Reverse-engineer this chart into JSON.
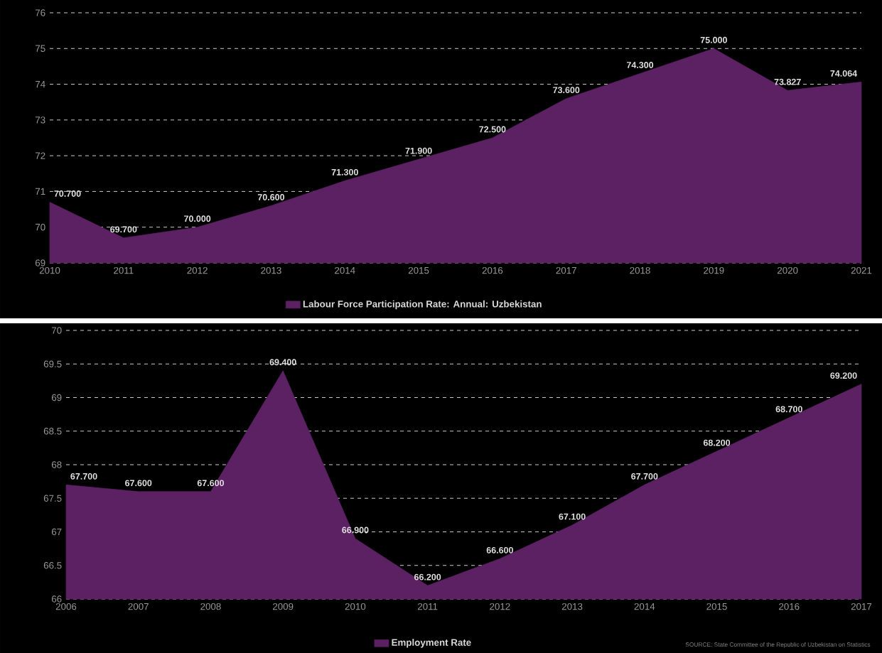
{
  "chart_data": [
    {
      "type": "area",
      "categories": [
        "2010",
        "2011",
        "2012",
        "2013",
        "2014",
        "2015",
        "2016",
        "2017",
        "2018",
        "2019",
        "2020",
        "2021"
      ],
      "series": [
        {
          "name": "Labour Force Participation Rate: Annual: Uzbekistan",
          "color": "#5b2163",
          "values": [
            70.7,
            69.7,
            70.0,
            70.6,
            71.3,
            71.9,
            72.5,
            73.6,
            74.3,
            75.0,
            73.827,
            74.064
          ],
          "value_labels": [
            "70.700",
            "69.700",
            "70.000",
            "70.600",
            "71.300",
            "71.900",
            "72.500",
            "73.600",
            "74.300",
            "75.000",
            "73.827",
            "74.064"
          ]
        }
      ],
      "ylim": [
        69,
        76
      ],
      "yticks": [
        69,
        70,
        71,
        72,
        73,
        74,
        75,
        76
      ],
      "grid": "y",
      "legend": "bottom"
    },
    {
      "type": "area",
      "categories": [
        "2006",
        "2007",
        "2008",
        "2009",
        "2010",
        "2011",
        "2012",
        "2013",
        "2014",
        "2015",
        "2016",
        "2017"
      ],
      "series": [
        {
          "name": "Employment Rate",
          "color": "#5b2163",
          "values": [
            67.7,
            67.6,
            67.6,
            69.4,
            66.9,
            66.2,
            66.6,
            67.1,
            67.7,
            68.2,
            68.7,
            69.2
          ],
          "value_labels": [
            "67.700",
            "67.600",
            "67.600",
            "69.400",
            "66.900",
            "66.200",
            "66.600",
            "67.100",
            "67.700",
            "68.200",
            "68.700",
            "69.200"
          ]
        }
      ],
      "ylim": [
        66,
        70
      ],
      "yticks": [
        66,
        66.5,
        67,
        67.5,
        68,
        68.5,
        69,
        69.5,
        70
      ],
      "grid": "y",
      "legend": "bottom",
      "annotations": [
        "SOURCE: State Committee of the Republic of Uzbekistan on Statistics"
      ]
    }
  ]
}
